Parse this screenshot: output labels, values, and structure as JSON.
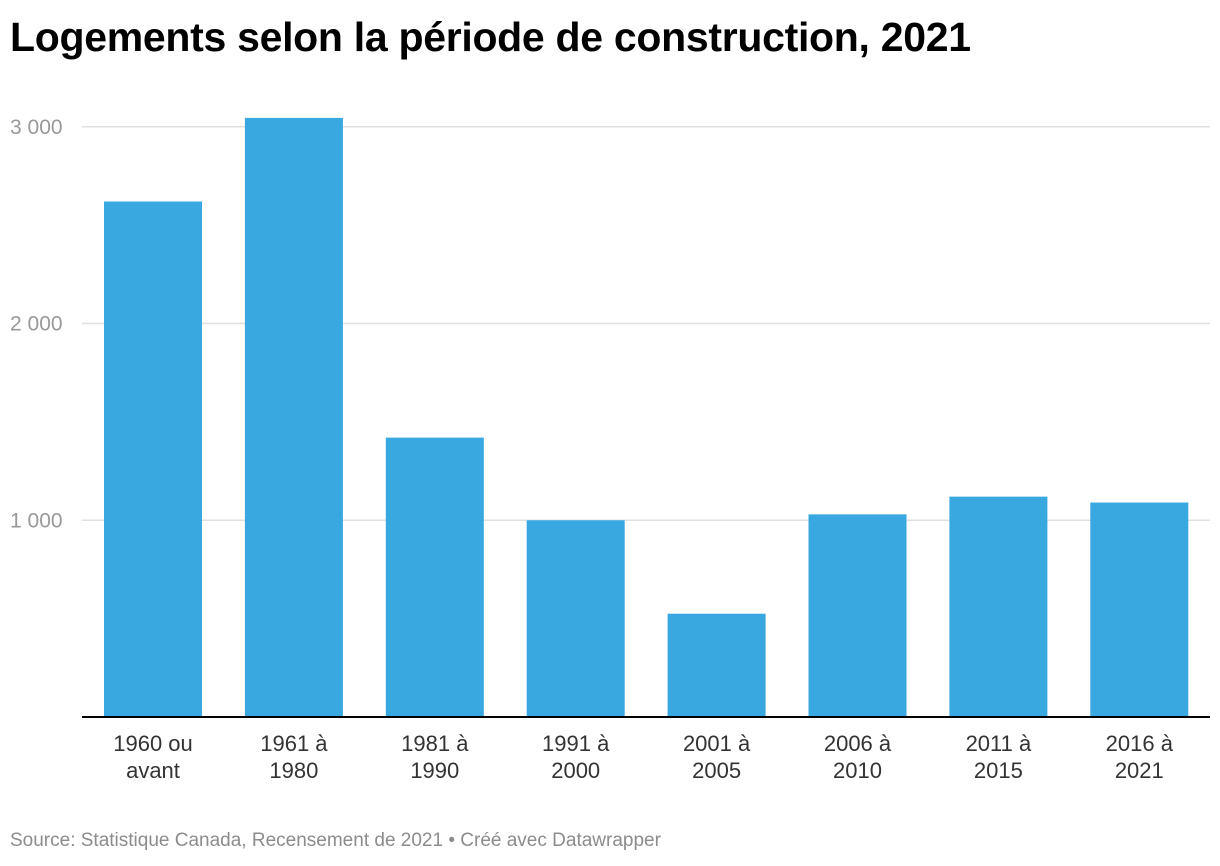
{
  "chart": {
    "title": "Logements selon la période de construction, 2021",
    "footer": {
      "source": "Source: Statistique Canada, Recensement de 2021",
      "separator": "•",
      "credit": "Créé avec Datawrapper"
    }
  },
  "colors": {
    "bar": "#3aa8e0",
    "gridline": "#e0e0e0",
    "axis_line": "#000000",
    "tick_label_y": "#999999",
    "tick_label_x": "#333333"
  },
  "chart_data": {
    "type": "bar",
    "title": "Logements selon la période de construction, 2021",
    "xlabel": "",
    "ylabel": "",
    "categories": [
      [
        "1960 ou",
        "avant"
      ],
      [
        "1961 à",
        "1980"
      ],
      [
        "1981 à",
        "1990"
      ],
      [
        "1991 à",
        "2000"
      ],
      [
        "2001 à",
        "2005"
      ],
      [
        "2006 à",
        "2010"
      ],
      [
        "2011 à",
        "2015"
      ],
      [
        "2016 à",
        "2021"
      ]
    ],
    "values": [
      2620,
      3045,
      1420,
      1000,
      525,
      1030,
      1120,
      1090
    ],
    "ylim": [
      0,
      3050
    ],
    "yticks": [
      1000,
      2000,
      3000
    ],
    "ytick_labels": [
      "1 000",
      "2 000",
      "3 000"
    ],
    "grid": true,
    "legend": "none"
  }
}
